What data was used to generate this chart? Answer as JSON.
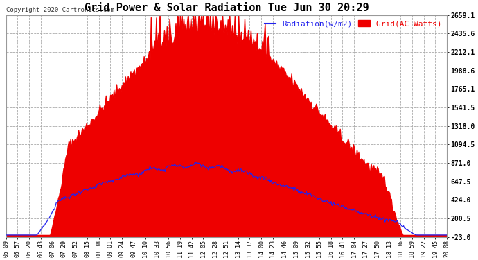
{
  "title": "Grid Power & Solar Radiation Tue Jun 30 20:29",
  "copyright": "Copyright 2020 Cartronics.com",
  "legend_radiation": "Radiation(w/m2)",
  "legend_grid": "Grid(AC Watts)",
  "yticks": [
    -23.0,
    200.5,
    424.0,
    647.5,
    871.0,
    1094.5,
    1318.0,
    1541.5,
    1765.1,
    1988.6,
    2212.1,
    2435.6,
    2659.1
  ],
  "ymin": -23.0,
  "ymax": 2659.1,
  "xtick_labels": [
    "05:09",
    "05:57",
    "06:20",
    "06:43",
    "07:06",
    "07:29",
    "07:52",
    "08:15",
    "08:38",
    "09:01",
    "09:24",
    "09:47",
    "10:10",
    "10:33",
    "10:56",
    "11:19",
    "11:42",
    "12:05",
    "12:28",
    "12:51",
    "13:14",
    "13:37",
    "14:00",
    "14:23",
    "14:46",
    "15:09",
    "15:32",
    "15:55",
    "16:18",
    "16:41",
    "17:04",
    "17:27",
    "17:50",
    "18:13",
    "18:36",
    "18:59",
    "19:22",
    "19:45",
    "20:08"
  ],
  "fig_background": "#ffffff",
  "plot_background": "#ffffff",
  "grid_color": "#aaaaaa",
  "fill_color": "#ee0000",
  "line_color": "#2222ee",
  "title_color": "#000000",
  "tick_color": "#000000",
  "copyright_color": "#333333",
  "legend_radiation_color": "#2222ee",
  "legend_grid_color": "#ee0000",
  "ytick_label_color": "#000000"
}
